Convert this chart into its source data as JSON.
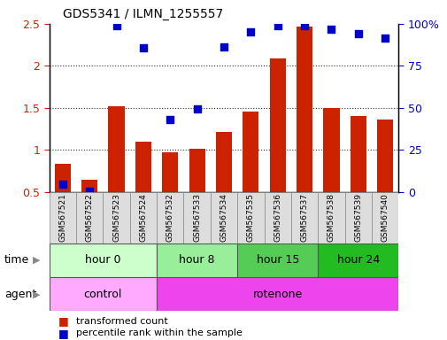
{
  "title": "GDS5341 / ILMN_1255557",
  "samples": [
    "GSM567521",
    "GSM567522",
    "GSM567523",
    "GSM567524",
    "GSM567532",
    "GSM567533",
    "GSM567534",
    "GSM567535",
    "GSM567536",
    "GSM567537",
    "GSM567538",
    "GSM567539",
    "GSM567540"
  ],
  "red_bars": [
    0.84,
    0.65,
    1.52,
    1.1,
    0.97,
    1.02,
    1.21,
    1.46,
    2.09,
    2.47,
    1.5,
    1.4,
    1.36
  ],
  "blue_dots_pct": [
    4.5,
    0.5,
    99,
    85.5,
    43,
    49.5,
    86,
    95,
    99,
    99,
    97,
    94,
    91.5
  ],
  "ylim_left": [
    0.5,
    2.5
  ],
  "ylim_right": [
    0,
    100
  ],
  "yticks_left": [
    0.5,
    1.0,
    1.5,
    2.0,
    2.5
  ],
  "ytick_labels_left": [
    "0.5",
    "1",
    "1.5",
    "2",
    "2.5"
  ],
  "yticks_right_vals": [
    0,
    25,
    50,
    75,
    100
  ],
  "ytick_labels_right": [
    "0",
    "25",
    "50",
    "75",
    "100%"
  ],
  "bar_color": "#cc2200",
  "dot_color": "#0000cc",
  "bar_bottom": 0.5,
  "time_groups": [
    {
      "label": "hour 0",
      "start": 0,
      "end": 4,
      "color": "#ccffcc"
    },
    {
      "label": "hour 8",
      "start": 4,
      "end": 7,
      "color": "#99ee99"
    },
    {
      "label": "hour 15",
      "start": 7,
      "end": 10,
      "color": "#55cc55"
    },
    {
      "label": "hour 24",
      "start": 10,
      "end": 13,
      "color": "#22bb22"
    }
  ],
  "agent_groups": [
    {
      "label": "control",
      "start": 0,
      "end": 4,
      "color": "#ffaaff"
    },
    {
      "label": "rotenone",
      "start": 4,
      "end": 13,
      "color": "#ee44ee"
    }
  ],
  "legend_red": "transformed count",
  "legend_blue": "percentile rank within the sample",
  "bar_width": 0.6,
  "dot_size": 40,
  "tick_label_color_left": "#cc2200",
  "tick_label_color_right": "#0000cc",
  "gridline_vals": [
    1.0,
    1.5,
    2.0
  ],
  "sample_box_color": "#dddddd",
  "hgrid_dotted_color": "#333333"
}
